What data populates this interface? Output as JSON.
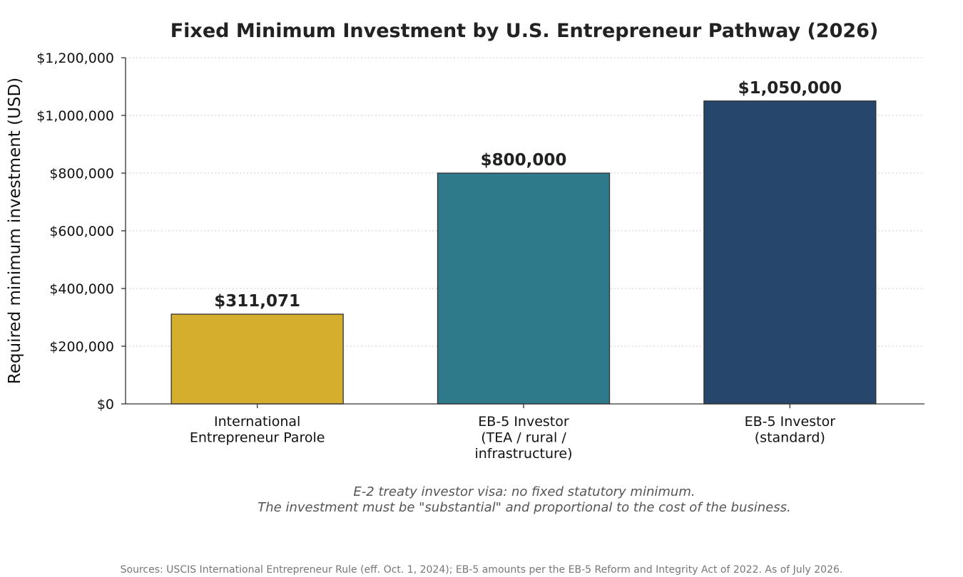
{
  "chart_data": {
    "type": "bar",
    "title": "Fixed Minimum Investment by U.S. Entrepreneur Pathway (2026)",
    "xlabel": "",
    "ylabel": "Required minimum investment (USD)",
    "ylim": [
      0,
      1200000
    ],
    "yticks": [
      0,
      200000,
      400000,
      600000,
      800000,
      1000000,
      1200000
    ],
    "ytick_labels": [
      "$0",
      "$200,000",
      "$400,000",
      "$600,000",
      "$800,000",
      "$1,000,000",
      "$1,200,000"
    ],
    "grid": "horizontal dotted",
    "categories": [
      [
        "International",
        "Entrepreneur Parole"
      ],
      [
        "EB-5 Investor",
        "(TEA / rural /",
        "infrastructure)"
      ],
      [
        "EB-5 Investor",
        "(standard)"
      ]
    ],
    "values": [
      311071,
      800000,
      1050000
    ],
    "value_labels": [
      "$311,071",
      "$800,000",
      "$1,050,000"
    ],
    "colors": [
      "#D6AE2E",
      "#2E7A8A",
      "#27466B"
    ],
    "notes": [
      "E-2 treaty investor visa: no fixed statutory minimum.",
      "The investment must be \"substantial\" and proportional to the cost of the business."
    ],
    "source": "Sources: USCIS International Entrepreneur Rule (eff. Oct. 1, 2024); EB-5 amounts per the EB-5 Reform and Integrity Act of 2022. As of July 2026."
  }
}
